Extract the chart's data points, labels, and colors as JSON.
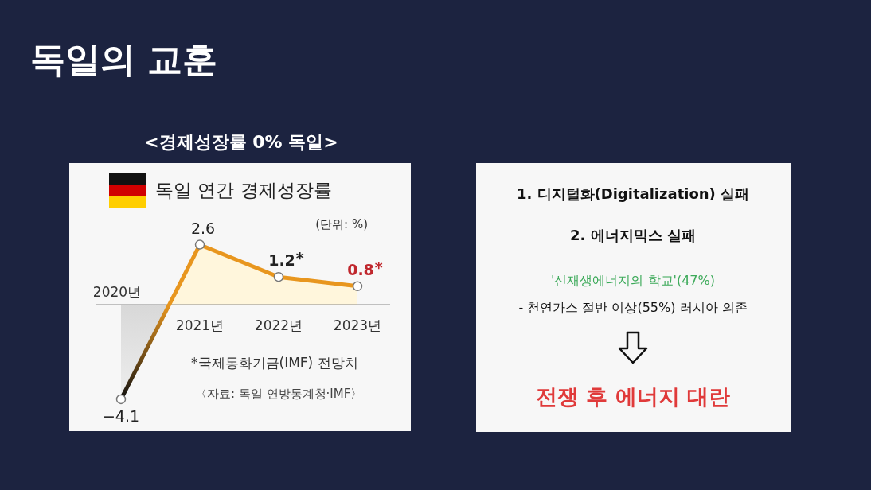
{
  "chart_data": [
    {
      "type": "area",
      "title": "독일 연간 경제성장률",
      "subtitle": "(단위: %)",
      "categories": [
        "2020년",
        "2021년",
        "2022년",
        "2023년"
      ],
      "series": [
        {
          "color": "#e8961e",
          "values": [
            -4.1,
            2.6,
            1.2,
            0.8
          ]
        }
      ],
      "data_labels": true,
      "marker": "circle",
      "annotations": [
        "독일의 교훈",
        "<경제성장률 0% 독일>",
        "*국제통화기금(IMF) 전망치",
        "〈자료: 독일 연방통계청·IMF〉",
        {
          "text": "*",
          "x": "2022년",
          "y": 1.2
        },
        {
          "text": "*",
          "x": "2023년",
          "y": 0.8
        }
      ]
    },
    {
      "type": "other",
      "annotations": [
        "1. 디지털화(Digitalization) 실패",
        "2. 에너지믹스 실패",
        "'신재생에너지의 학교'(47%)",
        "- 천연가스 절반 이상(55%) 러시아 의존",
        "전쟁 후 에너지 대란"
      ]
    }
  ]
}
